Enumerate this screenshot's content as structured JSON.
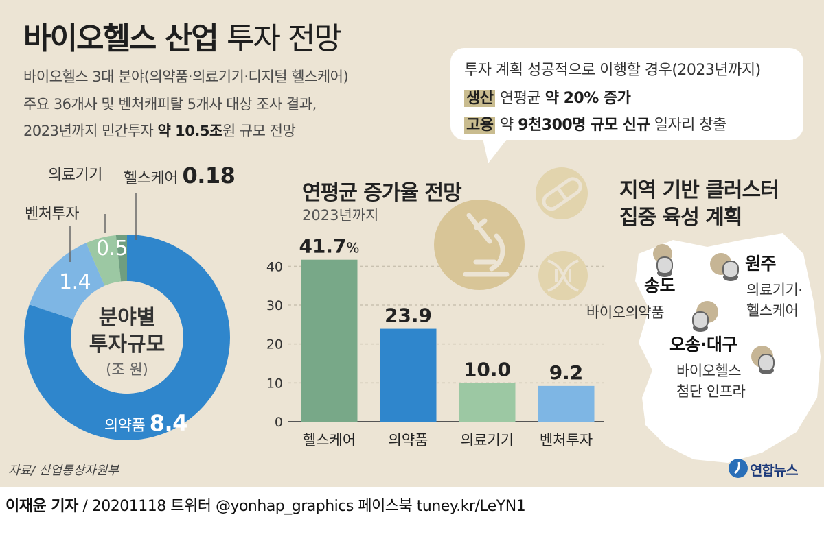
{
  "header": {
    "title_bold": "바이오헬스 산업",
    "title_light": "투자 전망",
    "subtitle_line1": "바이오헬스 3대 분야(의약품·의료기기·디지털 헬스케어)",
    "subtitle_line2": "주요 36개사 및 벤처캐피탈 5개사 대상 조사 결과,",
    "subtitle_line3_pre": "2023년까지 민간투자 ",
    "subtitle_line3_bold": "약 10.5조",
    "subtitle_line3_post": "원 규모 전망"
  },
  "bubble": {
    "line1": "투자 계획 성공적으로 이행할 경우(2023년까지)",
    "line2_tag": "생산",
    "line2_pre": " 연평균 ",
    "line2_bold": "약 20% 증가",
    "line3_tag": "고용",
    "line3_pre": " 약 ",
    "line3_bold": "9천300명 규모 신규",
    "line3_post": " 일자리 창출"
  },
  "donut": {
    "center_line1": "분야별",
    "center_line2": "투자규모",
    "center_unit": "(조 원)",
    "labels": {
      "healthcare_name": "헬스케어",
      "healthcare_value": "0.18",
      "device_name": "의료기기",
      "device_value": "0.5",
      "venture_name": "벤처투자",
      "venture_value": "1.4",
      "pharma_name": "의약품",
      "pharma_value": "8.4"
    }
  },
  "bar_section": {
    "title": "연평균 증가율 전망",
    "subtitle": "2023년까지"
  },
  "map_section": {
    "title_line1": "지역 기반 클러스터",
    "title_line2": "집중 육성 계획",
    "songdo_name": "송도",
    "songdo_desc": "바이오의약품",
    "wonju_name": "원주",
    "wonju_desc1": "의료기기·",
    "wonju_desc2": "헬스케어",
    "osong_name": "오송·대구",
    "osong_desc1": "바이오헬스",
    "osong_desc2": "첨단 인프라"
  },
  "source": "자료/ 산업통상자원부",
  "logo": "연합뉴스",
  "footer": {
    "reporter": "이재윤 기자",
    "rest": " / 20201118   트위터 @yonhap_graphics  페이스북 tuney.kr/LeYN1"
  },
  "colors": {
    "background": "#ece4d4",
    "pharma_blue": "#2f86cc",
    "venture_lightblue": "#7eb6e4",
    "device_green": "#9cc8a3",
    "healthcare_green": "#6f9e80",
    "bar_green": "#78a888",
    "highlight": "#c9bc8f"
  },
  "chart_data": [
    {
      "type": "pie",
      "title": "분야별 투자규모",
      "unit": "(조 원)",
      "categories": [
        "의약품",
        "벤처투자",
        "의료기기",
        "헬스케어"
      ],
      "values": [
        8.4,
        1.4,
        0.5,
        0.18
      ],
      "colors": [
        "#2f86cc",
        "#7eb6e4",
        "#9cc8a3",
        "#6f9e80"
      ],
      "donut": true
    },
    {
      "type": "bar",
      "title": "연평균 증가율 전망",
      "subtitle": "2023년까지",
      "categories": [
        "헬스케어",
        "의약품",
        "의료기기",
        "벤처투자"
      ],
      "values": [
        41.7,
        23.9,
        10.0,
        9.2
      ],
      "value_labels": [
        "41.7",
        "23.9",
        "10.0",
        "9.2"
      ],
      "unit_suffix": "%",
      "colors": [
        "#78a888",
        "#2f86cc",
        "#9cc8a3",
        "#7eb6e4"
      ],
      "ylim": [
        0,
        45
      ],
      "yticks": [
        0,
        10,
        20,
        30,
        40
      ],
      "grid": true,
      "xlabel": "",
      "ylabel": ""
    }
  ]
}
